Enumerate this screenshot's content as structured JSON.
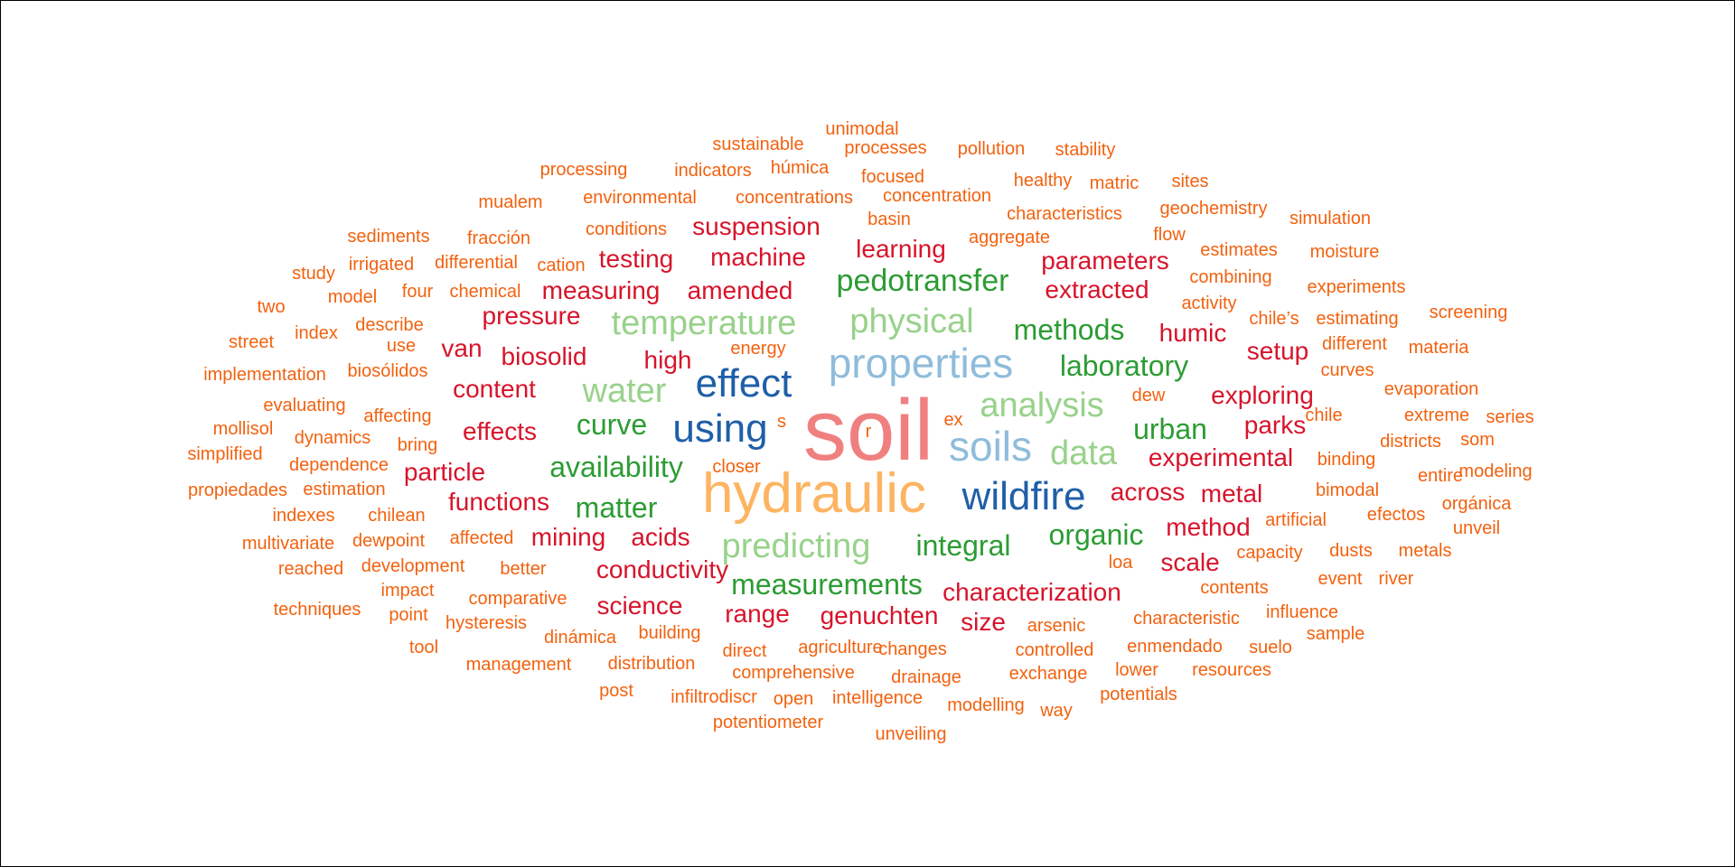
{
  "colors": {
    "pink": "#F08080",
    "peach": "#FDB462",
    "lightblue": "#8FBCDB",
    "darkblue": "#1F5FA8",
    "lightgreen": "#98D28B",
    "green": "#2C9C34",
    "red": "#D7142B",
    "orange": "#F2620F"
  },
  "words": [
    {
      "text": "soil",
      "color": "pink"
    },
    {
      "text": "hydraulic",
      "color": "peach"
    },
    {
      "text": "properties",
      "color": "lightblue"
    },
    {
      "text": "soils",
      "color": "lightblue"
    },
    {
      "text": "effect",
      "color": "darkblue"
    },
    {
      "text": "using",
      "color": "darkblue"
    },
    {
      "text": "wildfire",
      "color": "darkblue"
    },
    {
      "text": "temperature",
      "color": "lightgreen"
    },
    {
      "text": "physical",
      "color": "lightgreen"
    },
    {
      "text": "analysis",
      "color": "lightgreen"
    },
    {
      "text": "water",
      "color": "lightgreen"
    },
    {
      "text": "data",
      "color": "lightgreen"
    },
    {
      "text": "predicting",
      "color": "lightgreen"
    },
    {
      "text": "pedotransfer",
      "color": "green"
    },
    {
      "text": "methods",
      "color": "green"
    },
    {
      "text": "laboratory",
      "color": "green"
    },
    {
      "text": "curve",
      "color": "green"
    },
    {
      "text": "urban",
      "color": "green"
    },
    {
      "text": "availability",
      "color": "green"
    },
    {
      "text": "matter",
      "color": "green"
    },
    {
      "text": "integral",
      "color": "green"
    },
    {
      "text": "organic",
      "color": "green"
    },
    {
      "text": "measurements",
      "color": "green"
    },
    {
      "text": "suspension",
      "color": "red"
    },
    {
      "text": "learning",
      "color": "red"
    },
    {
      "text": "testing",
      "color": "red"
    },
    {
      "text": "machine",
      "color": "red"
    },
    {
      "text": "parameters",
      "color": "red"
    },
    {
      "text": "measuring",
      "color": "red"
    },
    {
      "text": "amended",
      "color": "red"
    },
    {
      "text": "extracted",
      "color": "red"
    },
    {
      "text": "pressure",
      "color": "red"
    },
    {
      "text": "humic",
      "color": "red"
    },
    {
      "text": "van",
      "color": "red"
    },
    {
      "text": "biosolid",
      "color": "red"
    },
    {
      "text": "high",
      "color": "red"
    },
    {
      "text": "setup",
      "color": "red"
    },
    {
      "text": "content",
      "color": "red"
    },
    {
      "text": "exploring",
      "color": "red"
    },
    {
      "text": "effects",
      "color": "red"
    },
    {
      "text": "parks",
      "color": "red"
    },
    {
      "text": "experimental",
      "color": "red"
    },
    {
      "text": "particle",
      "color": "red"
    },
    {
      "text": "across",
      "color": "red"
    },
    {
      "text": "metal",
      "color": "red"
    },
    {
      "text": "functions",
      "color": "red"
    },
    {
      "text": "method",
      "color": "red"
    },
    {
      "text": "mining",
      "color": "red"
    },
    {
      "text": "acids",
      "color": "red"
    },
    {
      "text": "scale",
      "color": "red"
    },
    {
      "text": "conductivity",
      "color": "red"
    },
    {
      "text": "characterization",
      "color": "red"
    },
    {
      "text": "science",
      "color": "red"
    },
    {
      "text": "range",
      "color": "red"
    },
    {
      "text": "genuchten",
      "color": "red"
    },
    {
      "text": "size",
      "color": "red"
    },
    {
      "text": "unimodal",
      "color": "orange"
    },
    {
      "text": "sustainable",
      "color": "orange"
    },
    {
      "text": "processes",
      "color": "orange"
    },
    {
      "text": "pollution",
      "color": "orange"
    },
    {
      "text": "stability",
      "color": "orange"
    },
    {
      "text": "processing",
      "color": "orange"
    },
    {
      "text": "indicators",
      "color": "orange"
    },
    {
      "text": "húmica",
      "color": "orange"
    },
    {
      "text": "focused",
      "color": "orange"
    },
    {
      "text": "healthy",
      "color": "orange"
    },
    {
      "text": "matric",
      "color": "orange"
    },
    {
      "text": "sites",
      "color": "orange"
    },
    {
      "text": "mualem",
      "color": "orange"
    },
    {
      "text": "environmental",
      "color": "orange"
    },
    {
      "text": "concentrations",
      "color": "orange"
    },
    {
      "text": "concentration",
      "color": "orange"
    },
    {
      "text": "characteristics",
      "color": "orange"
    },
    {
      "text": "geochemistry",
      "color": "orange"
    },
    {
      "text": "simulation",
      "color": "orange"
    },
    {
      "text": "basin",
      "color": "orange"
    },
    {
      "text": "sediments",
      "color": "orange"
    },
    {
      "text": "fracción",
      "color": "orange"
    },
    {
      "text": "conditions",
      "color": "orange"
    },
    {
      "text": "aggregate",
      "color": "orange"
    },
    {
      "text": "flow",
      "color": "orange"
    },
    {
      "text": "estimates",
      "color": "orange"
    },
    {
      "text": "moisture",
      "color": "orange"
    },
    {
      "text": "study",
      "color": "orange"
    },
    {
      "text": "irrigated",
      "color": "orange"
    },
    {
      "text": "differential",
      "color": "orange"
    },
    {
      "text": "cation",
      "color": "orange"
    },
    {
      "text": "combining",
      "color": "orange"
    },
    {
      "text": "experiments",
      "color": "orange"
    },
    {
      "text": "two",
      "color": "orange"
    },
    {
      "text": "model",
      "color": "orange"
    },
    {
      "text": "four",
      "color": "orange"
    },
    {
      "text": "chemical",
      "color": "orange"
    },
    {
      "text": "activity",
      "color": "orange"
    },
    {
      "text": "chile’s",
      "color": "orange"
    },
    {
      "text": "estimating",
      "color": "orange"
    },
    {
      "text": "screening",
      "color": "orange"
    },
    {
      "text": "street",
      "color": "orange"
    },
    {
      "text": "index",
      "color": "orange"
    },
    {
      "text": "describe",
      "color": "orange"
    },
    {
      "text": "use",
      "color": "orange"
    },
    {
      "text": "energy",
      "color": "orange"
    },
    {
      "text": "different",
      "color": "orange"
    },
    {
      "text": "materia",
      "color": "orange"
    },
    {
      "text": "implementation",
      "color": "orange"
    },
    {
      "text": "biosólidos",
      "color": "orange"
    },
    {
      "text": "curves",
      "color": "orange"
    },
    {
      "text": "evaporation",
      "color": "orange"
    },
    {
      "text": "evaluating",
      "color": "orange"
    },
    {
      "text": "dew",
      "color": "orange"
    },
    {
      "text": "mollisol",
      "color": "orange"
    },
    {
      "text": "affecting",
      "color": "orange"
    },
    {
      "text": "s",
      "color": "orange"
    },
    {
      "text": "r",
      "color": "orange"
    },
    {
      "text": "ex",
      "color": "orange"
    },
    {
      "text": "chile",
      "color": "orange"
    },
    {
      "text": "extreme",
      "color": "orange"
    },
    {
      "text": "series",
      "color": "orange"
    },
    {
      "text": "dynamics",
      "color": "orange"
    },
    {
      "text": "som",
      "color": "orange"
    },
    {
      "text": "simplified",
      "color": "orange"
    },
    {
      "text": "bring",
      "color": "orange"
    },
    {
      "text": "districts",
      "color": "orange"
    },
    {
      "text": "binding",
      "color": "orange"
    },
    {
      "text": "dependence",
      "color": "orange"
    },
    {
      "text": "closer",
      "color": "orange"
    },
    {
      "text": "modeling",
      "color": "orange"
    },
    {
      "text": "entire",
      "color": "orange"
    },
    {
      "text": "propiedades",
      "color": "orange"
    },
    {
      "text": "estimation",
      "color": "orange"
    },
    {
      "text": "bimodal",
      "color": "orange"
    },
    {
      "text": "orgánica",
      "color": "orange"
    },
    {
      "text": "indexes",
      "color": "orange"
    },
    {
      "text": "chilean",
      "color": "orange"
    },
    {
      "text": "efectos",
      "color": "orange"
    },
    {
      "text": "artificial",
      "color": "orange"
    },
    {
      "text": "unveil",
      "color": "orange"
    },
    {
      "text": "multivariate",
      "color": "orange"
    },
    {
      "text": "dewpoint",
      "color": "orange"
    },
    {
      "text": "affected",
      "color": "orange"
    },
    {
      "text": "capacity",
      "color": "orange"
    },
    {
      "text": "dusts",
      "color": "orange"
    },
    {
      "text": "metals",
      "color": "orange"
    },
    {
      "text": "reached",
      "color": "orange"
    },
    {
      "text": "development",
      "color": "orange"
    },
    {
      "text": "better",
      "color": "orange"
    },
    {
      "text": "loa",
      "color": "orange"
    },
    {
      "text": "event",
      "color": "orange"
    },
    {
      "text": "river",
      "color": "orange"
    },
    {
      "text": "impact",
      "color": "orange"
    },
    {
      "text": "contents",
      "color": "orange"
    },
    {
      "text": "comparative",
      "color": "orange"
    },
    {
      "text": "techniques",
      "color": "orange"
    },
    {
      "text": "point",
      "color": "orange"
    },
    {
      "text": "hysteresis",
      "color": "orange"
    },
    {
      "text": "characteristic",
      "color": "orange"
    },
    {
      "text": "influence",
      "color": "orange"
    },
    {
      "text": "arsenic",
      "color": "orange"
    },
    {
      "text": "building",
      "color": "orange"
    },
    {
      "text": "dinámica",
      "color": "orange"
    },
    {
      "text": "sample",
      "color": "orange"
    },
    {
      "text": "tool",
      "color": "orange"
    },
    {
      "text": "agriculture",
      "color": "orange"
    },
    {
      "text": "direct",
      "color": "orange"
    },
    {
      "text": "changes",
      "color": "orange"
    },
    {
      "text": "controlled",
      "color": "orange"
    },
    {
      "text": "enmendado",
      "color": "orange"
    },
    {
      "text": "suelo",
      "color": "orange"
    },
    {
      "text": "management",
      "color": "orange"
    },
    {
      "text": "distribution",
      "color": "orange"
    },
    {
      "text": "comprehensive",
      "color": "orange"
    },
    {
      "text": "drainage",
      "color": "orange"
    },
    {
      "text": "exchange",
      "color": "orange"
    },
    {
      "text": "lower",
      "color": "orange"
    },
    {
      "text": "resources",
      "color": "orange"
    },
    {
      "text": "post",
      "color": "orange"
    },
    {
      "text": "infiltrodiscr",
      "color": "orange"
    },
    {
      "text": "open",
      "color": "orange"
    },
    {
      "text": "intelligence",
      "color": "orange"
    },
    {
      "text": "modelling",
      "color": "orange"
    },
    {
      "text": "potentials",
      "color": "orange"
    },
    {
      "text": "way",
      "color": "orange"
    },
    {
      "text": "potentiometer",
      "color": "orange"
    },
    {
      "text": "unveiling",
      "color": "orange"
    }
  ]
}
